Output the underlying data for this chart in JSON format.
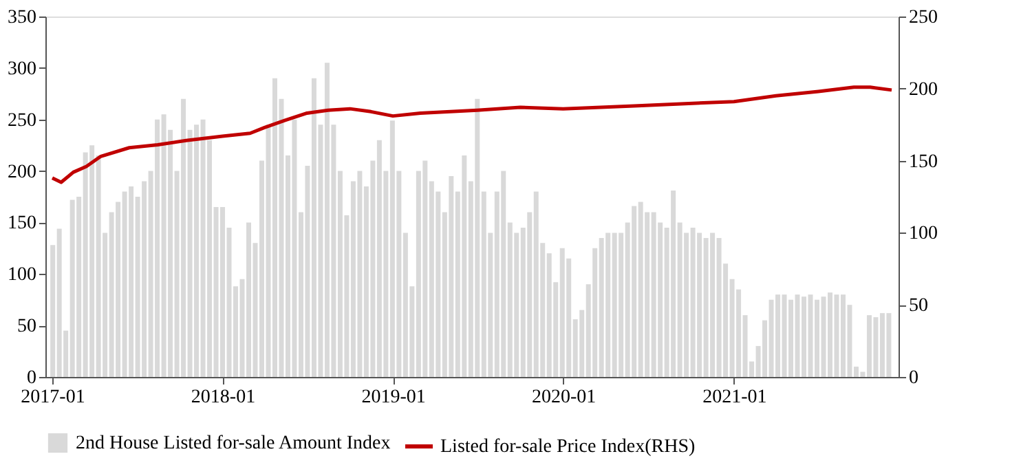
{
  "chart_data": {
    "type": "bar",
    "legend": "bottom",
    "grid": false,
    "x": [
      "2017-01-02",
      "2017-01-16",
      "2017-01-30",
      "2017-02-13",
      "2017-02-27",
      "2017-03-13",
      "2017-03-27",
      "2017-04-10",
      "2017-04-24",
      "2017-05-08",
      "2017-05-22",
      "2017-06-05",
      "2017-06-19",
      "2017-07-03",
      "2017-07-17",
      "2017-07-31",
      "2017-08-14",
      "2017-08-28",
      "2017-09-11",
      "2017-09-25",
      "2017-10-09",
      "2017-10-23",
      "2017-11-06",
      "2017-11-20",
      "2017-12-04",
      "2017-12-18",
      "2018-01-01",
      "2018-01-15",
      "2018-01-29",
      "2018-02-12",
      "2018-02-26",
      "2018-03-12",
      "2018-03-26",
      "2018-04-09",
      "2018-04-23",
      "2018-05-07",
      "2018-05-21",
      "2018-06-04",
      "2018-06-18",
      "2018-07-02",
      "2018-07-16",
      "2018-07-30",
      "2018-08-13",
      "2018-08-27",
      "2018-09-10",
      "2018-09-24",
      "2018-10-08",
      "2018-10-22",
      "2018-11-05",
      "2018-11-19",
      "2018-12-03",
      "2018-12-17",
      "2018-12-31",
      "2019-01-14",
      "2019-01-28",
      "2019-02-11",
      "2019-02-25",
      "2019-03-11",
      "2019-03-25",
      "2019-04-08",
      "2019-04-22",
      "2019-05-06",
      "2019-05-20",
      "2019-06-03",
      "2019-06-17",
      "2019-07-01",
      "2019-07-15",
      "2019-07-29",
      "2019-08-12",
      "2019-08-26",
      "2019-09-09",
      "2019-09-23",
      "2019-10-07",
      "2019-10-21",
      "2019-11-04",
      "2019-11-18",
      "2019-12-02",
      "2019-12-16",
      "2019-12-30",
      "2020-01-13",
      "2020-01-27",
      "2020-02-10",
      "2020-02-24",
      "2020-03-09",
      "2020-03-23",
      "2020-04-06",
      "2020-04-20",
      "2020-05-04",
      "2020-05-18",
      "2020-06-01",
      "2020-06-15",
      "2020-06-29",
      "2020-07-13",
      "2020-07-27",
      "2020-08-10",
      "2020-08-24",
      "2020-09-07",
      "2020-09-21",
      "2020-10-05",
      "2020-10-19",
      "2020-11-02",
      "2020-11-16",
      "2020-11-30",
      "2020-12-14",
      "2020-12-28",
      "2021-01-11",
      "2021-01-25",
      "2021-02-08",
      "2021-02-22",
      "2021-03-08",
      "2021-03-22",
      "2021-04-05",
      "2021-04-19",
      "2021-05-03",
      "2021-05-17",
      "2021-05-31",
      "2021-06-14",
      "2021-06-28",
      "2021-07-12",
      "2021-07-26",
      "2021-08-09",
      "2021-08-23",
      "2021-09-06",
      "2021-09-20",
      "2021-10-04",
      "2021-10-18",
      "2021-11-01",
      "2021-11-15",
      "2021-11-29"
    ],
    "series": [
      {
        "name": "2nd House Listed for-sale Amount Index",
        "color": "#d9d9d9",
        "values": [
          128,
          144,
          45,
          172,
          175,
          218,
          225,
          215,
          140,
          160,
          170,
          180,
          185,
          175,
          190,
          200,
          250,
          255,
          240,
          200,
          270,
          240,
          245,
          250,
          230,
          165,
          165,
          145,
          88,
          95,
          150,
          130,
          210,
          245,
          290,
          270,
          215,
          250,
          160,
          205,
          290,
          245,
          305,
          245,
          200,
          157,
          190,
          200,
          185,
          210,
          230,
          200,
          249,
          200,
          140,
          88,
          200,
          210,
          190,
          180,
          160,
          195,
          180,
          215,
          190,
          270,
          180,
          140,
          180,
          200,
          150,
          140,
          145,
          160,
          180,
          130,
          120,
          92,
          125,
          115,
          56,
          65,
          90,
          125,
          135,
          140,
          140,
          140,
          150,
          166,
          170,
          160,
          160,
          150,
          145,
          181,
          150,
          140,
          145,
          140,
          135,
          140,
          135,
          110,
          95,
          85,
          60,
          15,
          30,
          55,
          75,
          80,
          80,
          75,
          80,
          78,
          80,
          75,
          78,
          82,
          80,
          80,
          70,
          10,
          5,
          60,
          58,
          62,
          62
        ]
      },
      {
        "name": "Listed for-sale Price Index(RHS)",
        "type": "line",
        "axis": "y2",
        "color": "#c00000",
        "line_style": "solid",
        "x": [
          "2017-01-01",
          "2017-01-20",
          "2017-02-15",
          "2017-03-15",
          "2017-04-15",
          "2017-06-15",
          "2017-08-15",
          "2017-10-15",
          "2018-01-01",
          "2018-03-01",
          "2018-04-01",
          "2018-05-15",
          "2018-07-01",
          "2018-08-15",
          "2018-10-01",
          "2018-11-15",
          "2019-01-01",
          "2019-03-01",
          "2019-07-01",
          "2019-10-01",
          "2020-01-01",
          "2020-06-01",
          "2021-01-01",
          "2021-04-01",
          "2021-07-01",
          "2021-09-15",
          "2021-10-20",
          "2021-12-05"
        ],
        "values": [
          138,
          135,
          142,
          146,
          153,
          159,
          161,
          164,
          167,
          169,
          173,
          178,
          183,
          185,
          186,
          184,
          181,
          183,
          185,
          187,
          186,
          188,
          191,
          195,
          198,
          201,
          201,
          199
        ]
      }
    ],
    "xlim": [
      "2017-01-01",
      "2021-12-05"
    ],
    "xticks": [
      {
        "value": "2017-01-01",
        "label": "2017-01"
      },
      {
        "value": "2018-01-01",
        "label": "2018-01"
      },
      {
        "value": "2019-01-01",
        "label": "2019-01"
      },
      {
        "value": "2020-01-01",
        "label": "2020-01"
      },
      {
        "value": "2021-01-01",
        "label": "2021-01"
      }
    ],
    "ylim": [
      0,
      350
    ],
    "yticks": [
      0,
      50,
      100,
      150,
      200,
      250,
      300,
      350
    ],
    "y2lim": [
      0,
      250
    ],
    "y2ticks": [
      0,
      50,
      100,
      150,
      200,
      250
    ]
  }
}
